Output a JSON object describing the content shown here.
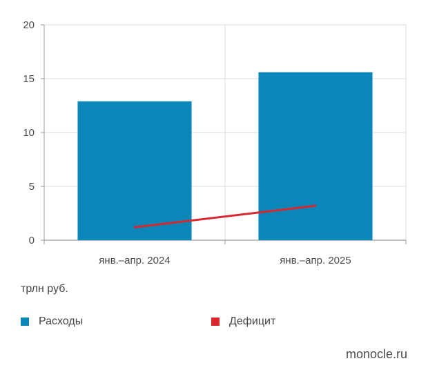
{
  "chart_data": {
    "type": "bar",
    "categories": [
      "янв.–апр. 2024",
      "янв.–апр. 2025"
    ],
    "series": [
      {
        "name": "Расходы",
        "type": "bar",
        "values": [
          12.9,
          15.6
        ],
        "color": "#0a86b9"
      },
      {
        "name": "Дефицит",
        "type": "line",
        "values": [
          1.2,
          3.2
        ],
        "color": "#d9272e"
      }
    ],
    "ylim": [
      0,
      20
    ],
    "yticks": [
      0,
      5,
      10,
      15,
      20
    ],
    "ylabel": "трлн руб.",
    "xlabel": "",
    "grid": true,
    "legend_position": "bottom-left"
  },
  "legend": {
    "items": [
      {
        "label": "Расходы",
        "color": "#0a86b9",
        "icon": "square"
      },
      {
        "label": "Дефицит",
        "color": "#d9272e",
        "icon": "square"
      }
    ]
  },
  "unit_label": "трлн руб.",
  "source": "monocle.ru"
}
